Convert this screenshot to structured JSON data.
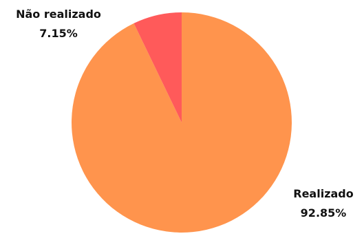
{
  "chart_data": {
    "type": "pie",
    "title": "",
    "slices": [
      {
        "name": "Realizado",
        "value": 92.85,
        "value_label": "92.85%",
        "color": "#ff944d"
      },
      {
        "name": "Não realizado",
        "value": 7.15,
        "value_label": "7.15%",
        "color": "#ff5a5a"
      }
    ],
    "start_angle": "top",
    "direction": "counterclockwise",
    "legend": "none"
  }
}
